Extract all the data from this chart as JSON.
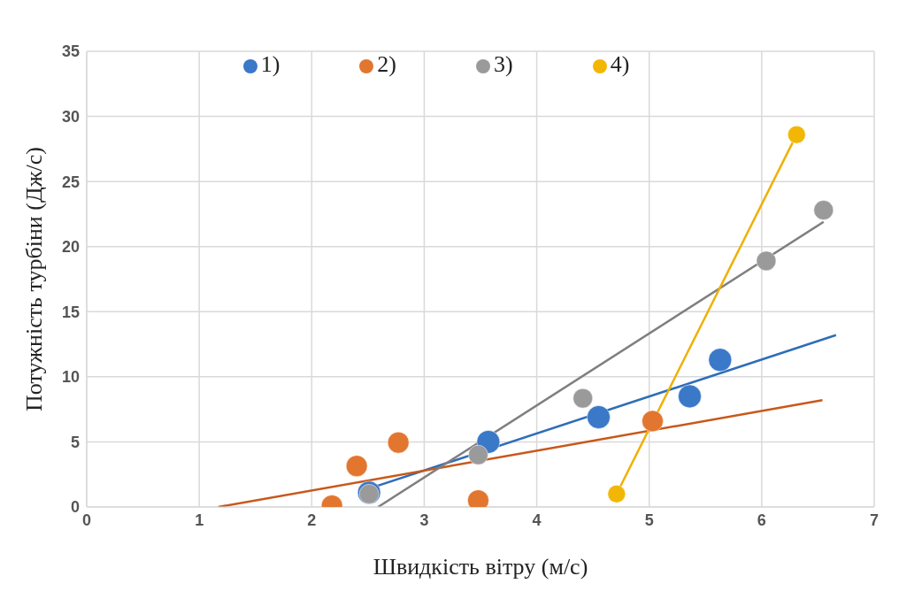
{
  "chart_data": {
    "type": "scatter",
    "xlabel": "Швидкість вітру (м/с)",
    "ylabel": "Потужність турбіни  (Дж/с)",
    "xlim": [
      0,
      7
    ],
    "xticks": [
      0,
      1,
      2,
      3,
      4,
      5,
      6,
      7
    ],
    "ylim": [
      0,
      35
    ],
    "yticks": [
      0,
      5,
      10,
      15,
      20,
      25,
      30,
      35
    ],
    "grid": true,
    "legend": "top",
    "marker": "circle",
    "series": [
      {
        "name": "1)",
        "color": "#3a78c8",
        "x": [
          2.51,
          3.57,
          4.55,
          5.36,
          5.63
        ],
        "values": [
          1.1,
          5.0,
          6.9,
          8.5,
          11.3
        ]
      },
      {
        "name": "2)",
        "color": "#e2762f",
        "x": [
          2.18,
          2.4,
          2.77,
          3.48,
          5.03
        ],
        "values": [
          0.1,
          3.15,
          4.95,
          0.5,
          6.6
        ]
      },
      {
        "name": "3)",
        "color": "#9a9a9a",
        "x": [
          2.51,
          3.48,
          4.41,
          6.04,
          6.55
        ],
        "values": [
          1.0,
          4.0,
          8.35,
          18.9,
          22.8
        ]
      },
      {
        "name": "4)",
        "color": "#f2b705",
        "x": [
          4.71,
          6.31
        ],
        "values": [
          1.0,
          28.6
        ]
      },
      {
        "type": "line",
        "marker": "none",
        "color": "#2f6db8",
        "x": [
          2.47,
          6.66
        ],
        "values": [
          1.3,
          13.2
        ]
      },
      {
        "type": "line",
        "marker": "none",
        "color": "#c8581a",
        "x": [
          1.17,
          6.54
        ],
        "values": [
          0,
          8.2
        ]
      },
      {
        "type": "line",
        "marker": "none",
        "color": "#7f7f7f",
        "x": [
          2.59,
          6.55
        ],
        "values": [
          0,
          21.9
        ]
      },
      {
        "type": "line",
        "marker": "none",
        "color": "#f0b000",
        "x": [
          4.71,
          6.31
        ],
        "values": [
          1.0,
          28.6
        ]
      }
    ]
  }
}
